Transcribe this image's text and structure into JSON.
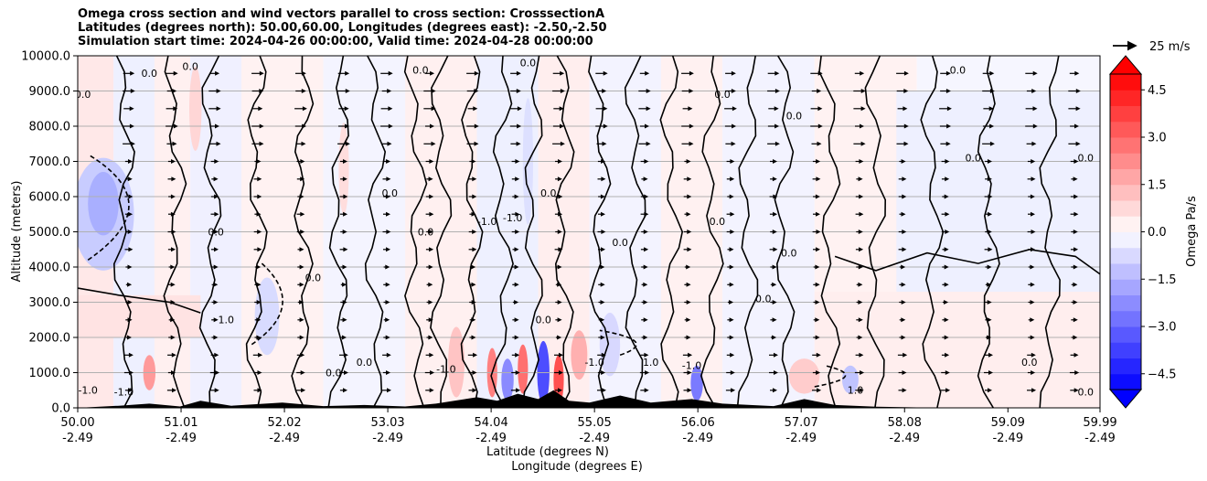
{
  "title": {
    "line1": "Omega cross section and wind vectors parallel to cross section: CrosssectionA",
    "line2": "Latitudes (degrees north): 50.00,60.00, Longitudes (degrees east): -2.50,-2.50",
    "line3": "Simulation start time: 2024-04-26 00:00:00, Valid time: 2024-04-28 00:00:00"
  },
  "chart_data": {
    "type": "heatmap",
    "title": "Omega cross section and wind vectors parallel to cross section: CrosssectionA",
    "ylabel": "Altitude (meters)",
    "xlabel_lat": "Latitude (degrees N)",
    "xlabel_lon": "Longitude (degrees E)",
    "ylim": [
      0,
      10000
    ],
    "y_ticks": [
      "0.0",
      "1000.0",
      "2000.0",
      "3000.0",
      "4000.0",
      "5000.0",
      "6000.0",
      "7000.0",
      "8000.0",
      "9000.0",
      "10000.0"
    ],
    "y_tick_values": [
      0,
      1000,
      2000,
      3000,
      4000,
      5000,
      6000,
      7000,
      8000,
      9000,
      10000
    ],
    "xlim": [
      50.0,
      59.99
    ],
    "x_tick_values": [
      50.0,
      51.01,
      52.02,
      53.03,
      54.04,
      55.05,
      56.06,
      57.07,
      58.08,
      59.09,
      59.99
    ],
    "x_ticks_lat": [
      "50.00",
      "51.01",
      "52.02",
      "53.03",
      "54.04",
      "55.05",
      "56.06",
      "57.07",
      "58.08",
      "59.09",
      "59.99"
    ],
    "x_ticks_lon": [
      "-2.49",
      "-2.49",
      "-2.49",
      "-2.49",
      "-2.49",
      "-2.49",
      "-2.49",
      "-2.49",
      "-2.49",
      "-2.49",
      "-2.49"
    ],
    "grid": "horizontal",
    "colorbar": {
      "label": "Omega Pa/s",
      "range": [
        -5.0,
        5.0
      ],
      "ticks": [
        "4.5",
        "3.0",
        "1.5",
        "0.0",
        "−1.5",
        "−3.0",
        "−4.5"
      ],
      "tick_values": [
        4.5,
        3.0,
        1.5,
        0.0,
        -1.5,
        -3.0,
        -4.5
      ],
      "extend": "both",
      "cmap": "bwr"
    },
    "quiver_key": "25 m/s",
    "contour_labels": [
      "0.0",
      "1.0",
      "-1.0"
    ],
    "colors": {
      "positive": "#ff0000",
      "negative": "#0000ff",
      "neutral": "#ffffff",
      "contour": "#000000",
      "terrain": "#000000"
    }
  }
}
